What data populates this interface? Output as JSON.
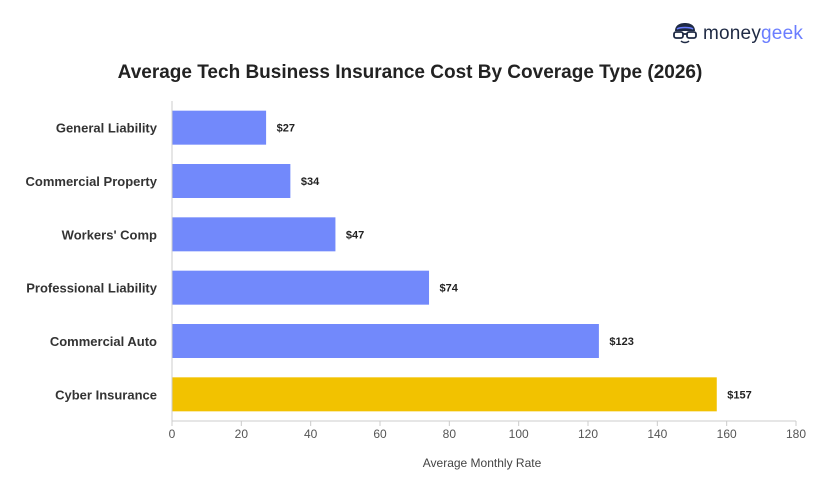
{
  "brand": {
    "name_part1": "money",
    "name_part2": "geek",
    "icon": "glasses-face-icon"
  },
  "colors": {
    "bar_default": "#7289fb",
    "bar_highlight": "#f2c200",
    "axis": "#cccccc"
  },
  "chart_data": {
    "type": "bar",
    "orientation": "horizontal",
    "title": "Average Tech Business Insurance Cost By Coverage Type (2026)",
    "xlabel": "Average Monthly Rate",
    "ylabel": "",
    "categories": [
      "General Liability",
      "Commercial Property",
      "Workers' Comp",
      "Professional Liability",
      "Commercial Auto",
      "Cyber Insurance"
    ],
    "values": [
      27,
      34,
      47,
      74,
      123,
      157
    ],
    "value_labels": [
      "$27",
      "$34",
      "$47",
      "$74",
      "$123",
      "$157"
    ],
    "highlight": [
      "Cyber Insurance"
    ],
    "xlim": [
      0,
      180
    ],
    "xticks": [
      0,
      20,
      40,
      60,
      80,
      100,
      120,
      140,
      160,
      180
    ],
    "grid": false,
    "legend": "none"
  }
}
